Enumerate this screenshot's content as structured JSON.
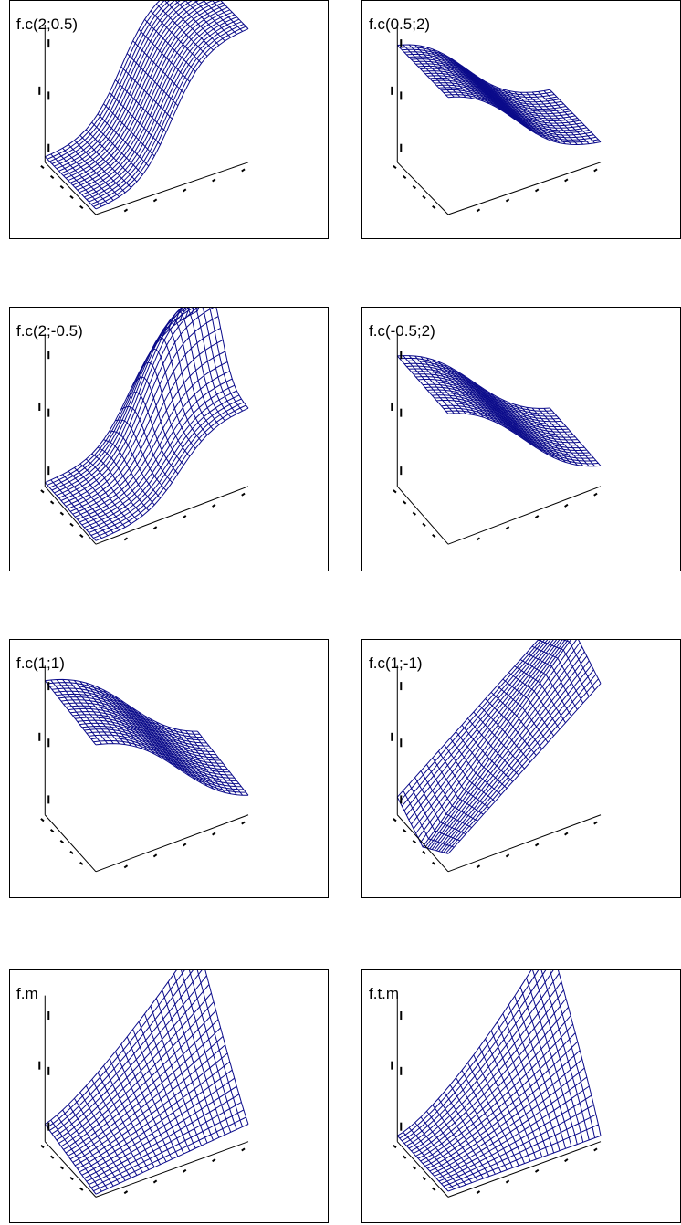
{
  "colors": {
    "surface": "#0a0a8a",
    "axes": "#000000",
    "frame": "#000000",
    "background": "#ffffff"
  },
  "panels": [
    {
      "title": "f.c(2;0.5)",
      "shape": "sigmoid"
    },
    {
      "title": "f.c(0.5;2)",
      "shape": "plateau_high"
    },
    {
      "title": "f.c(2;-0.5)",
      "shape": "sigmoid_peak"
    },
    {
      "title": "f.c(-0.5;2)",
      "shape": "plateau_drop"
    },
    {
      "title": "f.c(1;1)",
      "shape": "dome"
    },
    {
      "title": "f.c(1;-1)",
      "shape": "saddle"
    },
    {
      "title": "f.m",
      "shape": "peak_corner"
    },
    {
      "title": "f.t.m",
      "shape": "ramp_corner"
    }
  ]
}
